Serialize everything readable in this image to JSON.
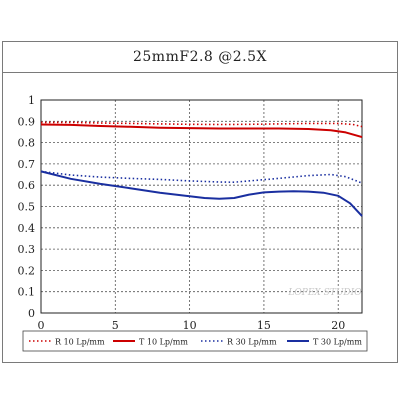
{
  "title": "25mmF2.8  @2.5X",
  "watermark": "LOPEX STUDIO",
  "chart_data": {
    "type": "line",
    "xlim": [
      0,
      21.6
    ],
    "ylim": [
      0,
      1
    ],
    "x_ticks": [
      0,
      5,
      10,
      15,
      20
    ],
    "y_ticks": [
      0,
      0.1,
      0.2,
      0.3,
      0.4,
      0.5,
      0.6,
      0.7,
      0.8,
      0.9,
      1
    ],
    "y_tick_labels": [
      "0",
      "0.1",
      "0.2",
      "0.3",
      "0.4",
      "0.5",
      "0.6",
      "0.7",
      "0.8",
      "0.9",
      "1"
    ],
    "x_tick_labels": [
      "0",
      "5",
      "10",
      "15",
      "20"
    ],
    "grid": "horizontal",
    "legend_position": "bottom",
    "series": [
      {
        "name": "R 10 Lp/mm",
        "color": "#cc0000",
        "style": "dotted",
        "points": [
          [
            0,
            0.895
          ],
          [
            2,
            0.895
          ],
          [
            4,
            0.892
          ],
          [
            6,
            0.89
          ],
          [
            8,
            0.888
          ],
          [
            10,
            0.886
          ],
          [
            12,
            0.885
          ],
          [
            14,
            0.886
          ],
          [
            16,
            0.888
          ],
          [
            18,
            0.89
          ],
          [
            20,
            0.89
          ],
          [
            21,
            0.885
          ],
          [
            21.6,
            0.875
          ]
        ]
      },
      {
        "name": "T 10 Lp/mm",
        "color": "#cc0000",
        "style": "solid",
        "points": [
          [
            0,
            0.885
          ],
          [
            2,
            0.883
          ],
          [
            4,
            0.878
          ],
          [
            6,
            0.874
          ],
          [
            8,
            0.87
          ],
          [
            10,
            0.868
          ],
          [
            12,
            0.866
          ],
          [
            14,
            0.866
          ],
          [
            16,
            0.866
          ],
          [
            18,
            0.864
          ],
          [
            19.5,
            0.858
          ],
          [
            20.5,
            0.848
          ],
          [
            21.6,
            0.826
          ]
        ]
      },
      {
        "name": "R 30 Lp/mm",
        "color": "#1a2fa0",
        "style": "dotted",
        "points": [
          [
            0,
            0.665
          ],
          [
            2,
            0.648
          ],
          [
            4,
            0.638
          ],
          [
            6,
            0.632
          ],
          [
            8,
            0.627
          ],
          [
            10,
            0.62
          ],
          [
            12,
            0.615
          ],
          [
            13,
            0.614
          ],
          [
            14,
            0.62
          ],
          [
            16,
            0.632
          ],
          [
            18,
            0.645
          ],
          [
            19.5,
            0.65
          ],
          [
            20.5,
            0.64
          ],
          [
            21.6,
            0.61
          ]
        ]
      },
      {
        "name": "T 30 Lp/mm",
        "color": "#1a2fa0",
        "style": "solid",
        "points": [
          [
            0,
            0.665
          ],
          [
            2,
            0.63
          ],
          [
            4,
            0.606
          ],
          [
            6,
            0.586
          ],
          [
            8,
            0.565
          ],
          [
            10,
            0.548
          ],
          [
            11,
            0.54
          ],
          [
            12,
            0.536
          ],
          [
            13,
            0.54
          ],
          [
            14,
            0.556
          ],
          [
            15,
            0.566
          ],
          [
            16,
            0.57
          ],
          [
            17,
            0.572
          ],
          [
            18,
            0.57
          ],
          [
            19,
            0.565
          ],
          [
            20,
            0.55
          ],
          [
            20.8,
            0.515
          ],
          [
            21.6,
            0.455
          ]
        ]
      }
    ]
  }
}
